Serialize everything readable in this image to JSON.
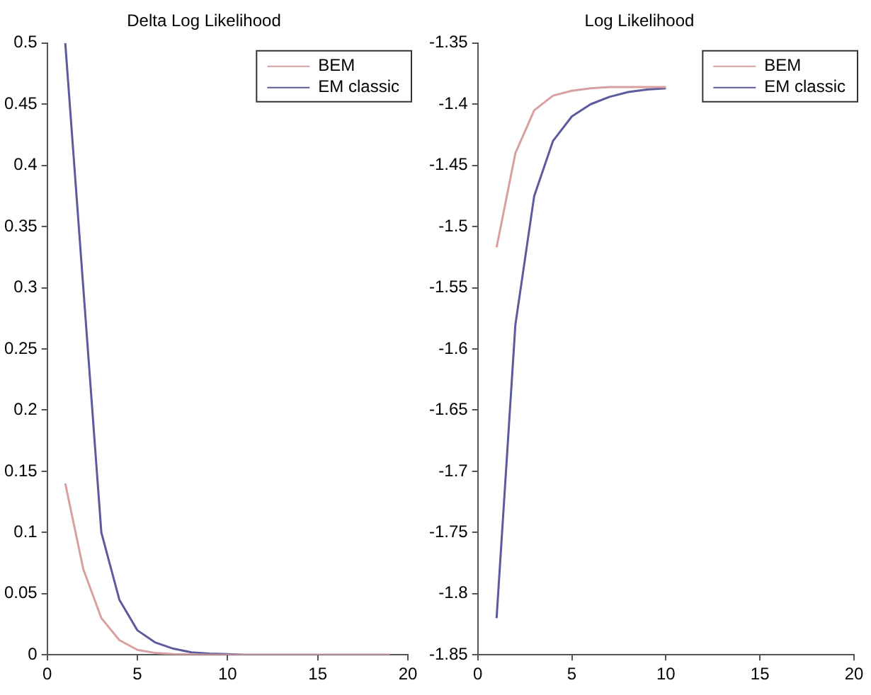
{
  "chart_data": [
    {
      "type": "line",
      "title": "Delta Log Likelihood",
      "x": [
        1,
        2,
        3,
        4,
        5,
        6,
        7,
        8,
        9,
        10,
        11,
        12,
        13,
        14,
        15,
        16,
        17,
        18,
        19
      ],
      "xlim": [
        0,
        20
      ],
      "xticks": [
        0,
        5,
        10,
        15,
        20
      ],
      "ylim": [
        0,
        0.5
      ],
      "yticks": [
        0,
        0.05,
        0.1,
        0.15,
        0.2,
        0.25,
        0.3,
        0.35,
        0.4,
        0.45,
        0.5
      ],
      "grid": false,
      "legend": "top right",
      "marker": "none",
      "line_style": "solid",
      "series": [
        {
          "name": "BEM",
          "color": "#d8a0a0",
          "values": [
            0.14,
            0.07,
            0.03,
            0.012,
            0.004,
            0.0015,
            0.0005,
            0.0002,
            0,
            0,
            0,
            0,
            0,
            0,
            0,
            0,
            0,
            0,
            0
          ]
        },
        {
          "name": "EM classic",
          "color": "#5c5c9c",
          "values": [
            0.5,
            0.3,
            0.1,
            0.045,
            0.02,
            0.01,
            0.005,
            0.002,
            0.001,
            0.0005,
            0,
            0,
            0,
            0,
            0,
            0,
            0,
            0,
            0
          ]
        }
      ]
    },
    {
      "type": "line",
      "title": "Log Likelihood",
      "x": [
        1,
        2,
        3,
        4,
        5,
        6,
        7,
        8,
        9,
        10
      ],
      "xlim": [
        0,
        20
      ],
      "xticks": [
        0,
        5,
        10,
        15,
        20
      ],
      "ylim": [
        -1.85,
        -1.35
      ],
      "yticks": [
        -1.85,
        -1.8,
        -1.75,
        -1.7,
        -1.65,
        -1.6,
        -1.55,
        -1.5,
        -1.45,
        -1.4,
        -1.35
      ],
      "grid": false,
      "legend": "top right",
      "marker": "none",
      "line_style": "solid",
      "series": [
        {
          "name": "BEM",
          "color": "#d8a0a0",
          "values": [
            -1.517,
            -1.44,
            -1.405,
            -1.393,
            -1.389,
            -1.387,
            -1.386,
            -1.386,
            -1.386,
            -1.386
          ]
        },
        {
          "name": "EM classic",
          "color": "#5c5c9c",
          "values": [
            -1.82,
            -1.58,
            -1.475,
            -1.43,
            -1.41,
            -1.4,
            -1.394,
            -1.39,
            -1.388,
            -1.387
          ]
        }
      ]
    }
  ]
}
